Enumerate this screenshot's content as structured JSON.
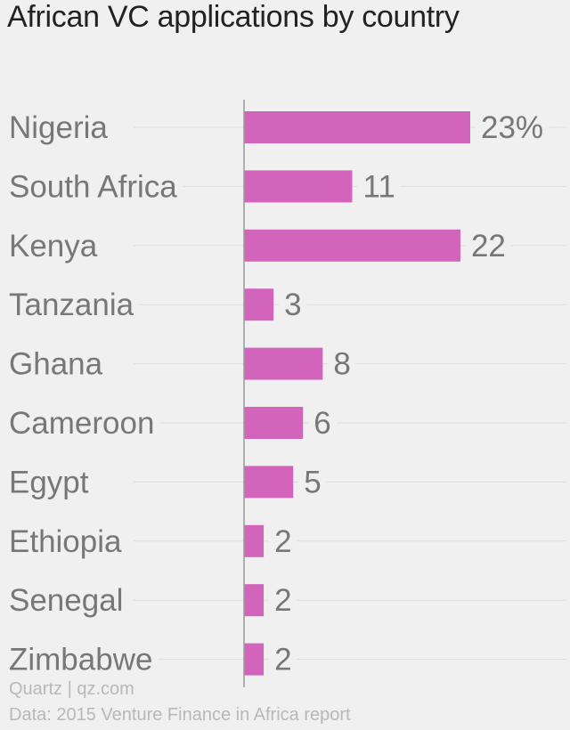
{
  "title": "African VC applications by country",
  "colors": {
    "bar": "#d364bc",
    "text": "#777777",
    "axis": "#999999",
    "gridline": "#dddddd"
  },
  "chart_data": {
    "type": "bar",
    "orientation": "horizontal",
    "categories": [
      "Nigeria",
      "South Africa",
      "Kenya",
      "Tanzania",
      "Ghana",
      "Cameroon",
      "Egypt",
      "Ethiopia",
      "Senegal",
      "Zimbabwe"
    ],
    "values": [
      23,
      11,
      22,
      3,
      8,
      6,
      5,
      2,
      2,
      2
    ],
    "value_labels": [
      "23%",
      "11",
      "22",
      "3",
      "8",
      "6",
      "5",
      "2",
      "2",
      "2"
    ],
    "title": "African VC applications by country",
    "xlim": [
      0,
      23
    ],
    "grid": true
  },
  "footer": {
    "source_brand": "Quartz | qz.com",
    "data_source": "Data: 2015 Venture Finance in Africa report"
  }
}
